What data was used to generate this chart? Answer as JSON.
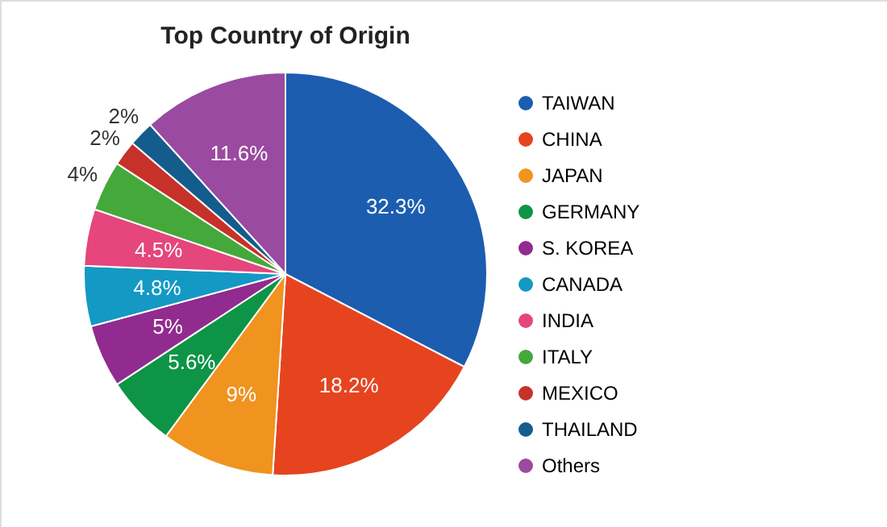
{
  "chart_data": {
    "type": "pie",
    "title": "Top Country of Origin",
    "legend": "right",
    "categories": [
      "TAIWAN",
      "CHINA",
      "JAPAN",
      "GERMANY",
      "S. KOREA",
      "CANADA",
      "INDIA",
      "ITALY",
      "MEXICO",
      "THAILAND",
      "Others"
    ],
    "values": [
      32.3,
      18.2,
      9,
      5.6,
      5,
      4.8,
      4.5,
      4,
      2,
      2,
      11.6
    ],
    "value_labels": [
      "32.3%",
      "18.2%",
      "9%",
      "5.6%",
      "5%",
      "4.8%",
      "4.5%",
      "4%",
      "2%",
      "2%",
      "11.6%"
    ],
    "colors": [
      "#1c5db0",
      "#e5441f",
      "#f0931f",
      "#0e9447",
      "#912b8f",
      "#1399c4",
      "#e5467c",
      "#45a83b",
      "#c63129",
      "#145c8c",
      "#9a4aa0"
    ]
  }
}
